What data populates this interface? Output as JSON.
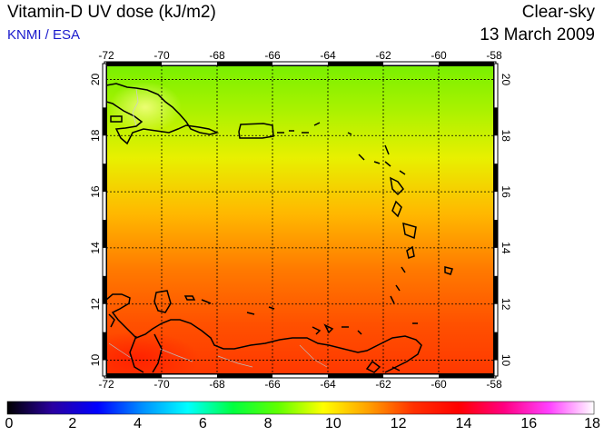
{
  "header": {
    "title": "Vitamin-D UV dose (kJ/m2)",
    "credit": "KNMI / ESA",
    "condition": "Clear-sky",
    "date": "13 March 2009"
  },
  "map": {
    "lon_ticks": [
      "-72",
      "-70",
      "-68",
      "-66",
      "-64",
      "-62",
      "-60",
      "-58"
    ],
    "lat_ticks": [
      "20",
      "18",
      "16",
      "14",
      "12",
      "10"
    ],
    "lon_range": [
      -72,
      -58
    ],
    "lat_range": [
      9.5,
      20.5
    ],
    "grid": true
  },
  "colorbar": {
    "ticks": [
      "0",
      "2",
      "4",
      "6",
      "8",
      "10",
      "12",
      "14",
      "16",
      "18"
    ],
    "range": [
      0,
      18
    ],
    "colors": [
      "#000000",
      "#2a00a0",
      "#0000ff",
      "#0090ff",
      "#00ffff",
      "#00ff40",
      "#60ff00",
      "#ffff00",
      "#ffa000",
      "#ff3000",
      "#ff0000",
      "#ff0080",
      "#ff40ff",
      "#ffffff"
    ]
  }
}
